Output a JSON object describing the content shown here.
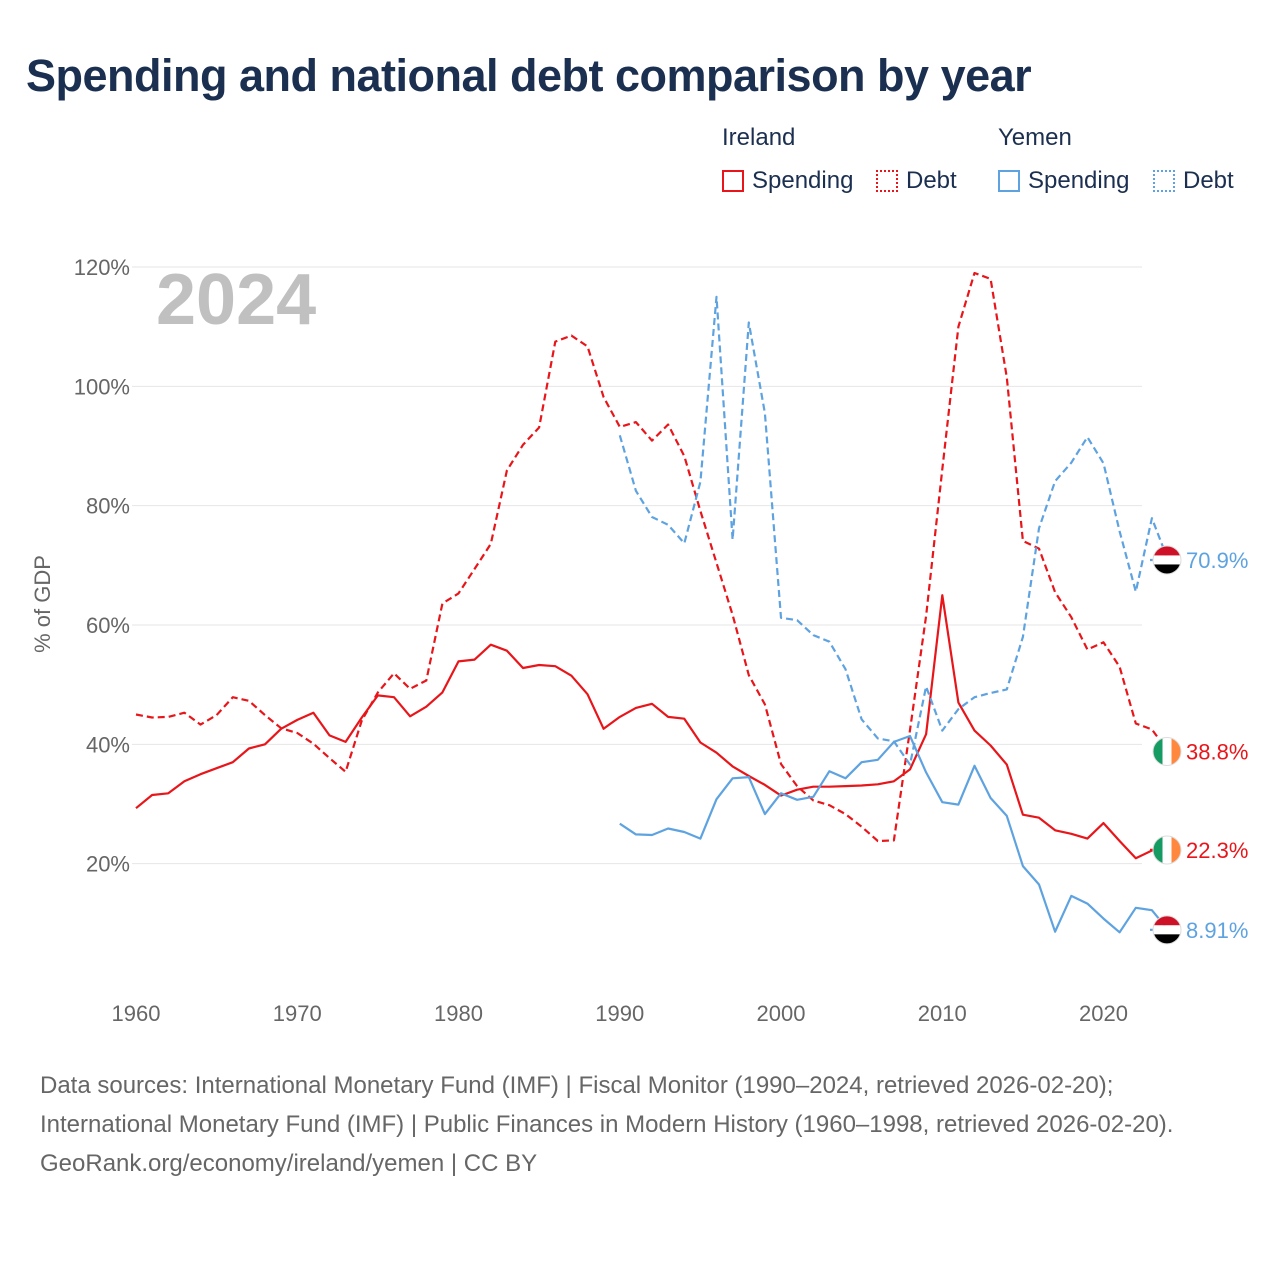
{
  "title": "Spending and national debt comparison by year",
  "legend": {
    "groups": [
      {
        "country": "Ireland",
        "color": "#e8161a",
        "items": [
          {
            "label": "Spending",
            "style": "solid"
          },
          {
            "label": "Debt",
            "style": "dotted"
          }
        ]
      },
      {
        "country": "Yemen",
        "color": "#5ea3e0",
        "items": [
          {
            "label": "Spending",
            "style": "solid"
          },
          {
            "label": "Debt",
            "style": "dotted"
          }
        ]
      }
    ]
  },
  "year_label": "2024",
  "footer": {
    "sources": "Data sources: International Monetary Fund (IMF) | Fiscal Monitor (1990–2024, retrieved 2026-02-20); International Monetary Fund (IMF) | Public Finances in Modern History (1960–1998, retrieved 2026-02-20).",
    "credit": "GeoRank.org/economy/ireland/yemen | CC BY"
  },
  "chart_data": {
    "type": "line",
    "title": "Spending and national debt comparison by year",
    "xlabel": "",
    "ylabel": "% of GDP",
    "xlim": [
      1960,
      2024
    ],
    "ylim": [
      0,
      120
    ],
    "x_ticks": [
      1960,
      1970,
      1980,
      1990,
      2000,
      2010,
      2020
    ],
    "x_tick_labels": [
      "1960",
      "1970",
      "1980",
      "1990",
      "2000",
      "2010",
      "2020"
    ],
    "y_ticks": [
      20,
      40,
      60,
      80,
      100,
      120
    ],
    "y_tick_labels": [
      "20%",
      "40%",
      "60%",
      "80%",
      "100%",
      "120%"
    ],
    "grid": true,
    "series": [
      {
        "name": "Ireland Spending",
        "country": "Ireland",
        "metric": "Spending",
        "color": "#e8161a",
        "dash": "solid",
        "start_year": 1960,
        "values": [
          29.3,
          31.5,
          31.8,
          33.8,
          35.0,
          36.0,
          37.0,
          39.3,
          40.0,
          42.6,
          44.1,
          45.3,
          41.5,
          40.4,
          44.5,
          48.2,
          47.9,
          44.7,
          46.3,
          48.7,
          53.9,
          54.2,
          56.7,
          55.7,
          52.8,
          53.3,
          53.1,
          51.5,
          48.4,
          42.6,
          44.6,
          46.1,
          46.8,
          44.6,
          44.3,
          40.3,
          38.6,
          36.3,
          34.7,
          33.2,
          31.4,
          32.4,
          32.9,
          32.9,
          33.0,
          33.1,
          33.3,
          33.8,
          35.8,
          41.7,
          65.0,
          47.0,
          42.3,
          39.8,
          36.6,
          28.2,
          27.7,
          25.6,
          25.0,
          24.2,
          26.8,
          23.8,
          20.9,
          22.2,
          22.3
        ],
        "end_label": "22.3%"
      },
      {
        "name": "Ireland Debt",
        "country": "Ireland",
        "metric": "Debt",
        "color": "#e8161a",
        "dash": "dashed",
        "start_year": 1960,
        "values": [
          45.0,
          44.5,
          44.6,
          45.3,
          43.3,
          44.9,
          47.9,
          47.3,
          44.9,
          42.7,
          41.9,
          40.1,
          37.7,
          35.4,
          44.0,
          48.7,
          51.9,
          49.3,
          50.7,
          63.6,
          65.3,
          69.4,
          73.6,
          85.9,
          90.2,
          93.1,
          107.5,
          108.5,
          106.7,
          98.2,
          93.2,
          94.0,
          90.9,
          93.6,
          88.3,
          79.1,
          70.4,
          61.7,
          51.6,
          46.7,
          36.7,
          33.0,
          30.6,
          29.8,
          28.3,
          26.2,
          23.8,
          23.9,
          42.4,
          61.5,
          86.1,
          110.0,
          119.0,
          118.0,
          101.5,
          74.1,
          72.8,
          65.5,
          61.3,
          55.9,
          57.1,
          53.0,
          43.5,
          42.5,
          38.8
        ],
        "end_label": "38.8%"
      },
      {
        "name": "Yemen Spending",
        "country": "Yemen",
        "metric": "Spending",
        "color": "#5ea3e0",
        "dash": "solid",
        "start_year": 1990,
        "values": [
          26.7,
          24.9,
          24.8,
          25.9,
          25.3,
          24.2,
          30.8,
          34.3,
          34.5,
          28.3,
          31.8,
          30.7,
          31.2,
          35.5,
          34.3,
          37.0,
          37.4,
          40.4,
          41.4,
          35.3,
          30.3,
          29.9,
          36.4,
          31.0,
          28.0,
          19.6,
          16.5,
          8.6,
          14.6,
          13.3,
          10.8,
          8.5,
          12.6,
          12.2,
          8.91
        ],
        "end_label": "8.91%"
      },
      {
        "name": "Yemen Debt",
        "country": "Yemen",
        "metric": "Debt",
        "color": "#5ea3e0",
        "dash": "dashed",
        "start_year": 1990,
        "values": [
          91.8,
          82.5,
          78.1,
          76.8,
          73.7,
          84.0,
          115.0,
          74.3,
          110.7,
          95.5,
          61.2,
          60.8,
          58.3,
          57.2,
          52.6,
          44.2,
          41.0,
          40.5,
          36.6,
          49.7,
          42.3,
          45.9,
          47.9,
          48.6,
          49.2,
          58.0,
          76.2,
          84.1,
          87.2,
          91.5,
          87.1,
          75.7,
          65.6,
          77.9,
          70.9
        ],
        "end_label": "70.9%"
      }
    ]
  }
}
